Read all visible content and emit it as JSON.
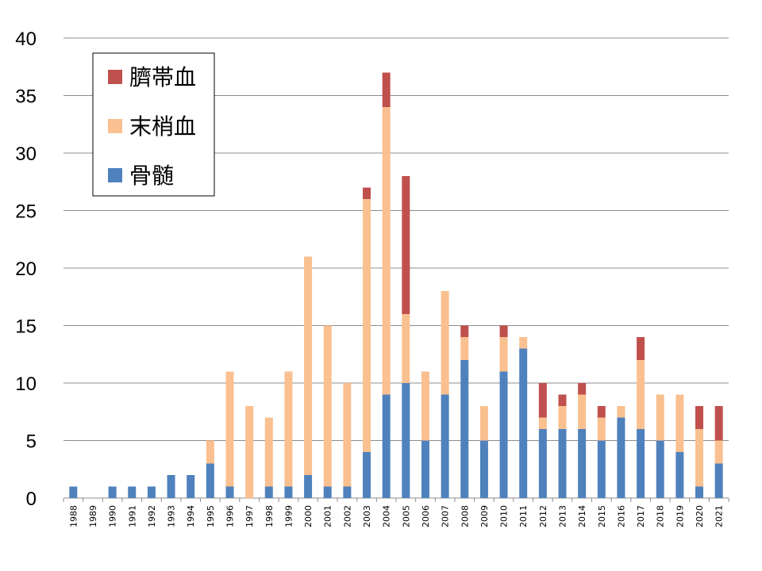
{
  "chart_data": {
    "type": "bar",
    "stacked": true,
    "title": "",
    "xlabel": "",
    "ylabel": "",
    "ylim": [
      0,
      40
    ],
    "yticks": [
      0,
      5,
      10,
      15,
      20,
      25,
      30,
      35,
      40
    ],
    "grid": true,
    "legend_position": "top-left",
    "categories": [
      "1988",
      "1989",
      "1990",
      "1991",
      "1992",
      "1993",
      "1994",
      "1995",
      "1996",
      "1997",
      "1998",
      "1999",
      "2000",
      "2001",
      "2002",
      "2003",
      "2004",
      "2005",
      "2006",
      "2007",
      "2008",
      "2009",
      "2010",
      "2011",
      "2012",
      "2013",
      "2014",
      "2015",
      "2016",
      "2017",
      "2018",
      "2019",
      "2020",
      "2021"
    ],
    "series": [
      {
        "name": "骨髄",
        "color": "#4f81bd",
        "values": [
          1,
          0,
          1,
          1,
          1,
          2,
          2,
          3,
          1,
          0,
          1,
          1,
          2,
          1,
          1,
          4,
          9,
          10,
          5,
          9,
          12,
          5,
          11,
          13,
          6,
          6,
          6,
          5,
          7,
          6,
          5,
          4,
          1,
          3
        ]
      },
      {
        "name": "末梢血",
        "color": "#fac090",
        "values": [
          0,
          0,
          0,
          0,
          0,
          0,
          0,
          2,
          10,
          8,
          6,
          10,
          19,
          14,
          9,
          22,
          25,
          6,
          6,
          9,
          2,
          3,
          3,
          1,
          1,
          2,
          3,
          2,
          1,
          6,
          4,
          5,
          5,
          2
        ]
      },
      {
        "name": "臍帯血",
        "color": "#c0504d",
        "values": [
          0,
          0,
          0,
          0,
          0,
          0,
          0,
          0,
          0,
          0,
          0,
          0,
          0,
          0,
          0,
          1,
          3,
          12,
          0,
          0,
          1,
          0,
          1,
          0,
          3,
          1,
          1,
          1,
          0,
          2,
          0,
          0,
          2,
          3
        ]
      }
    ],
    "legend_order": [
      "臍帯血",
      "末梢血",
      "骨髄"
    ]
  }
}
